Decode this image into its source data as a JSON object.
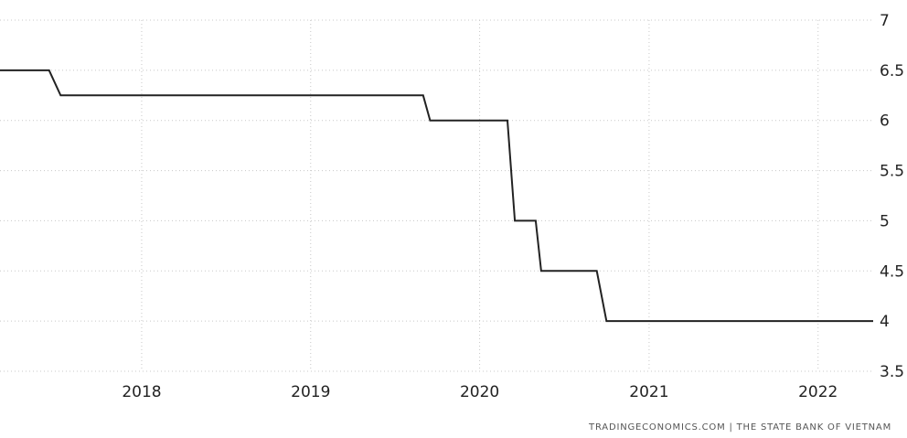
{
  "chart_data": {
    "type": "line",
    "title": "",
    "xlabel": "",
    "ylabel": "",
    "xlim": [
      "2017-03-01",
      "2022-04-30"
    ],
    "ylim": [
      3.5,
      7
    ],
    "y_ticks": [
      {
        "value": 7,
        "label": "7"
      },
      {
        "value": 6.5,
        "label": "6.5"
      },
      {
        "value": 6,
        "label": "6"
      },
      {
        "value": 5.5,
        "label": "5.5"
      },
      {
        "value": 5,
        "label": "5"
      },
      {
        "value": 4.5,
        "label": "4.5"
      },
      {
        "value": 4,
        "label": "4"
      },
      {
        "value": 3.5,
        "label": "3.5"
      }
    ],
    "x_ticks": [
      {
        "date": "2018-01-01",
        "label": "2018"
      },
      {
        "date": "2019-01-01",
        "label": "2019"
      },
      {
        "date": "2020-01-01",
        "label": "2020"
      },
      {
        "date": "2021-01-01",
        "label": "2021"
      },
      {
        "date": "2022-01-01",
        "label": "2022"
      }
    ],
    "grid": true,
    "grid_style": "dotted",
    "line_color": "#222222",
    "grid_color": "#c8c8c8",
    "series": [
      {
        "points": [
          {
            "x": "2017-03-01",
            "y": 6.5
          },
          {
            "x": "2017-06-15",
            "y": 6.5
          },
          {
            "x": "2017-07-10",
            "y": 6.25
          },
          {
            "x": "2019-09-01",
            "y": 6.25
          },
          {
            "x": "2019-09-16",
            "y": 6.0
          },
          {
            "x": "2020-03-01",
            "y": 6.0
          },
          {
            "x": "2020-03-17",
            "y": 5.0
          },
          {
            "x": "2020-05-01",
            "y": 5.0
          },
          {
            "x": "2020-05-13",
            "y": 4.5
          },
          {
            "x": "2020-09-10",
            "y": 4.5
          },
          {
            "x": "2020-10-01",
            "y": 4.0
          },
          {
            "x": "2022-04-30",
            "y": 4.0
          }
        ]
      }
    ]
  },
  "source": {
    "text": "TRADINGECONOMICS.COM | THE STATE BANK OF VIETNAM"
  }
}
